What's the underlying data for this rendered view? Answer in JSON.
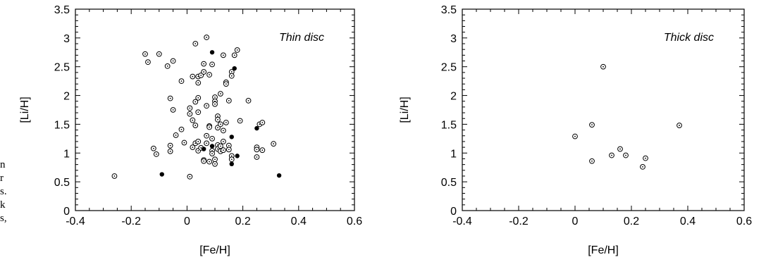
{
  "edge_text": [
    "n",
    "r",
    "s.",
    "k",
    "s,"
  ],
  "chart_data": [
    {
      "type": "scatter",
      "title": "Thin disc",
      "xlabel": "[Fe/H]",
      "ylabel": "[Li/H]",
      "xlim": [
        -0.4,
        0.6
      ],
      "ylim": [
        0,
        3.5
      ],
      "xticks": [
        "-0.4",
        "-0.2",
        "0",
        "0.2",
        "0.4",
        "0.6"
      ],
      "yticks": [
        "0",
        "0.5",
        "1",
        "1.5",
        "2",
        "2.5",
        "3",
        "3.5"
      ],
      "grid": false,
      "series": [
        {
          "marker": "open-circle-dot",
          "points": [
            [
              -0.26,
              0.6
            ],
            [
              -0.15,
              2.72
            ],
            [
              -0.14,
              2.58
            ],
            [
              -0.12,
              1.08
            ],
            [
              -0.11,
              0.98
            ],
            [
              -0.1,
              2.72
            ],
            [
              -0.07,
              2.51
            ],
            [
              -0.06,
              1.95
            ],
            [
              -0.06,
              1.13
            ],
            [
              -0.06,
              1.03
            ],
            [
              -0.05,
              1.75
            ],
            [
              -0.05,
              2.6
            ],
            [
              -0.04,
              1.31
            ],
            [
              -0.02,
              2.25
            ],
            [
              -0.02,
              1.41
            ],
            [
              -0.01,
              1.18
            ],
            [
              0.01,
              1.78
            ],
            [
              0.01,
              1.68
            ],
            [
              0.01,
              0.59
            ],
            [
              0.02,
              2.33
            ],
            [
              0.02,
              1.57
            ],
            [
              0.02,
              1.1
            ],
            [
              0.03,
              2.9
            ],
            [
              0.03,
              1.89
            ],
            [
              0.03,
              1.48
            ],
            [
              0.03,
              1.17
            ],
            [
              0.04,
              2.33
            ],
            [
              0.04,
              2.22
            ],
            [
              0.04,
              1.96
            ],
            [
              0.04,
              1.71
            ],
            [
              0.04,
              1.2
            ],
            [
              0.04,
              1.04
            ],
            [
              0.05,
              2.35
            ],
            [
              0.05,
              1.09
            ],
            [
              0.06,
              2.41
            ],
            [
              0.06,
              2.55
            ],
            [
              0.06,
              0.88
            ],
            [
              0.06,
              0.86
            ],
            [
              0.07,
              3.01
            ],
            [
              0.07,
              1.82
            ],
            [
              0.07,
              1.3
            ],
            [
              0.07,
              1.17
            ],
            [
              0.08,
              2.36
            ],
            [
              0.08,
              0.85
            ],
            [
              0.08,
              1.47
            ],
            [
              0.08,
              1.45
            ],
            [
              0.09,
              2.54
            ],
            [
              0.09,
              1.25
            ],
            [
              0.09,
              1.04
            ],
            [
              0.09,
              0.99
            ],
            [
              0.1,
              1.97
            ],
            [
              0.1,
              1.9
            ],
            [
              0.1,
              1.85
            ],
            [
              0.1,
              0.89
            ],
            [
              0.1,
              0.81
            ],
            [
              0.11,
              1.64
            ],
            [
              0.11,
              1.58
            ],
            [
              0.11,
              1.44
            ],
            [
              0.11,
              1.14
            ],
            [
              0.11,
              1.07
            ],
            [
              0.12,
              2.03
            ],
            [
              0.12,
              1.5
            ],
            [
              0.12,
              1.12
            ],
            [
              0.12,
              1.03
            ],
            [
              0.13,
              2.7
            ],
            [
              0.13,
              1.39
            ],
            [
              0.13,
              1.2
            ],
            [
              0.13,
              1.05
            ],
            [
              0.14,
              2.23
            ],
            [
              0.14,
              2.2
            ],
            [
              0.14,
              1.53
            ],
            [
              0.15,
              1.91
            ],
            [
              0.15,
              1.13
            ],
            [
              0.15,
              1.06
            ],
            [
              0.16,
              2.41
            ],
            [
              0.16,
              2.34
            ],
            [
              0.16,
              0.95
            ],
            [
              0.16,
              0.89
            ],
            [
              0.17,
              2.7
            ],
            [
              0.18,
              2.79
            ],
            [
              0.19,
              1.56
            ],
            [
              0.22,
              1.91
            ],
            [
              0.25,
              1.1
            ],
            [
              0.25,
              1.06
            ],
            [
              0.25,
              0.93
            ],
            [
              0.26,
              1.5
            ],
            [
              0.27,
              1.05
            ],
            [
              0.27,
              1.53
            ],
            [
              0.31,
              1.16
            ]
          ]
        },
        {
          "marker": "filled-circle",
          "points": [
            [
              -0.09,
              0.63
            ],
            [
              0.06,
              1.07
            ],
            [
              0.09,
              2.75
            ],
            [
              0.09,
              1.12
            ],
            [
              0.16,
              1.28
            ],
            [
              0.16,
              0.81
            ],
            [
              0.17,
              2.47
            ],
            [
              0.18,
              0.95
            ],
            [
              0.25,
              1.43
            ],
            [
              0.33,
              0.61
            ]
          ]
        }
      ]
    },
    {
      "type": "scatter",
      "title": "Thick disc",
      "xlabel": "[Fe/H]",
      "ylabel": "[Li/H]",
      "xlim": [
        -0.4,
        0.6
      ],
      "ylim": [
        0,
        3.5
      ],
      "xticks": [
        "-0.4",
        "-0.2",
        "0",
        "0.2",
        "0.4",
        "0.6"
      ],
      "yticks": [
        "0",
        "0.5",
        "1",
        "1.5",
        "2",
        "2.5",
        "3",
        "3.5"
      ],
      "grid": false,
      "series": [
        {
          "marker": "open-circle-dot",
          "points": [
            [
              0.0,
              1.29
            ],
            [
              0.06,
              1.49
            ],
            [
              0.06,
              0.86
            ],
            [
              0.1,
              2.5
            ],
            [
              0.13,
              0.96
            ],
            [
              0.16,
              1.07
            ],
            [
              0.18,
              0.96
            ],
            [
              0.24,
              0.76
            ],
            [
              0.25,
              0.91
            ],
            [
              0.37,
              1.48
            ]
          ]
        }
      ]
    }
  ]
}
